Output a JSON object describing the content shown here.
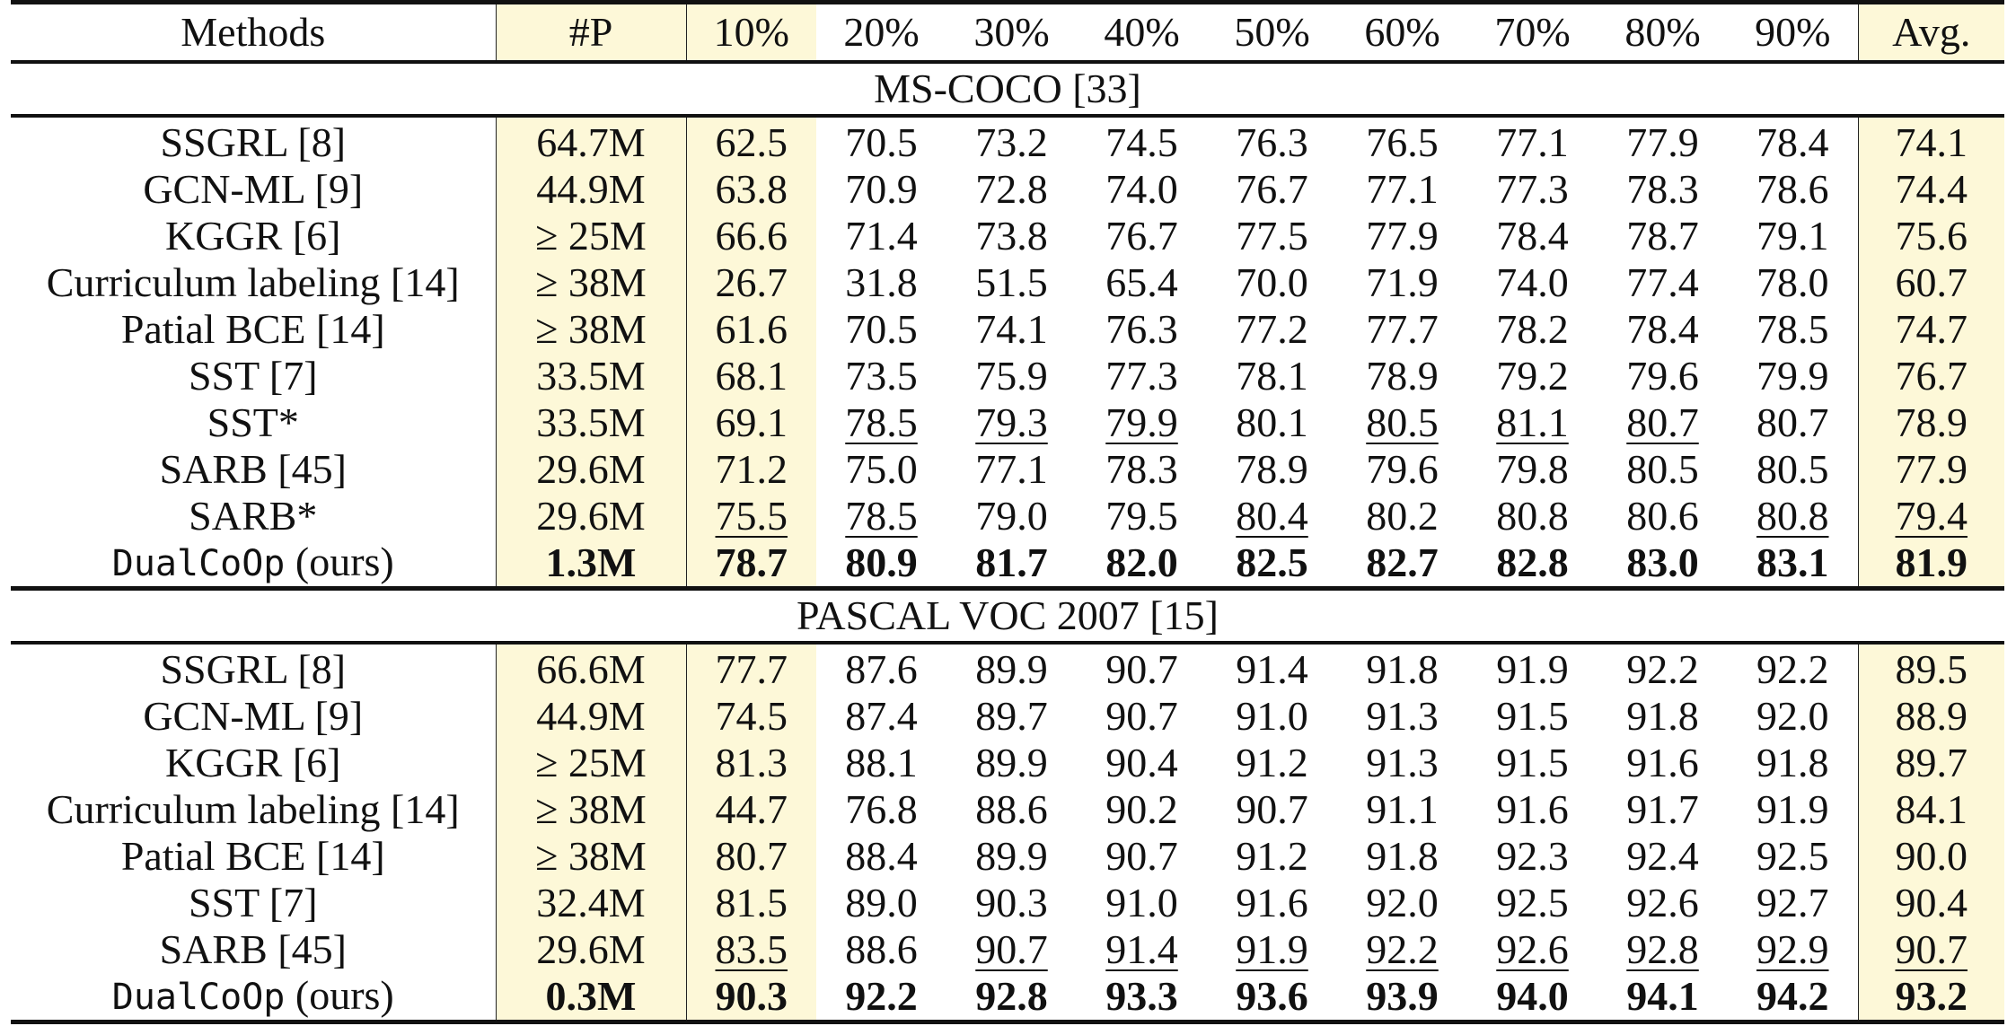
{
  "header": {
    "method": "Methods",
    "params": "#P",
    "ratios": [
      "10%",
      "20%",
      "30%",
      "40%",
      "50%",
      "60%",
      "70%",
      "80%",
      "90%"
    ],
    "avg": "Avg."
  },
  "sections": [
    {
      "title": "MS-COCO [33]",
      "rows": [
        {
          "method": "SSGRL [8]",
          "params": "64.7M",
          "values": [
            "62.5",
            "70.5",
            "73.2",
            "74.5",
            "76.3",
            "76.5",
            "77.1",
            "77.9",
            "78.4"
          ],
          "avg": "74.1"
        },
        {
          "method": "GCN-ML [9]",
          "params": "44.9M",
          "values": [
            "63.8",
            "70.9",
            "72.8",
            "74.0",
            "76.7",
            "77.1",
            "77.3",
            "78.3",
            "78.6"
          ],
          "avg": "74.4"
        },
        {
          "method": "KGGR [6]",
          "params": "≥ 25M",
          "values": [
            "66.6",
            "71.4",
            "73.8",
            "76.7",
            "77.5",
            "77.9",
            "78.4",
            "78.7",
            "79.1"
          ],
          "avg": "75.6"
        },
        {
          "method": "Curriculum labeling [14]",
          "params": "≥ 38M",
          "values": [
            "26.7",
            "31.8",
            "51.5",
            "65.4",
            "70.0",
            "71.9",
            "74.0",
            "77.4",
            "78.0"
          ],
          "avg": "60.7"
        },
        {
          "method": "Patial BCE [14]",
          "params": "≥ 38M",
          "values": [
            "61.6",
            "70.5",
            "74.1",
            "76.3",
            "77.2",
            "77.7",
            "78.2",
            "78.4",
            "78.5"
          ],
          "avg": "74.7"
        },
        {
          "method": "SST [7]",
          "params": "33.5M",
          "values": [
            "68.1",
            "73.5",
            "75.9",
            "77.3",
            "78.1",
            "78.9",
            "79.2",
            "79.6",
            "79.9"
          ],
          "avg": "76.7"
        },
        {
          "method": "SST*",
          "params": "33.5M",
          "values": [
            "69.1",
            "78.5",
            "79.3",
            "79.9",
            "80.1",
            "80.5",
            "81.1",
            "80.7",
            "80.7"
          ],
          "avg": "78.9"
        },
        {
          "method": "SARB [45]",
          "params": "29.6M",
          "values": [
            "71.2",
            "75.0",
            "77.1",
            "78.3",
            "78.9",
            "79.6",
            "79.8",
            "80.5",
            "80.5"
          ],
          "avg": "77.9"
        },
        {
          "method": "SARB*",
          "params": "29.6M",
          "values": [
            "75.5",
            "78.5",
            "79.0",
            "79.5",
            "80.4",
            "80.2",
            "80.8",
            "80.6",
            "80.8"
          ],
          "avg": "79.4"
        }
      ],
      "ours": {
        "method": "DualCoOp",
        "method_suffix": " (ours)",
        "params": "1.3M",
        "values": [
          "78.7",
          "80.9",
          "81.7",
          "82.0",
          "82.5",
          "82.7",
          "82.8",
          "83.0",
          "83.1"
        ],
        "avg": "81.9"
      }
    },
    {
      "title": "PASCAL VOC 2007  [15]",
      "rows": [
        {
          "method": "SSGRL [8]",
          "params": "66.6M",
          "values": [
            "77.7",
            "87.6",
            "89.9",
            "90.7",
            "91.4",
            "91.8",
            "91.9",
            "92.2",
            "92.2"
          ],
          "avg": "89.5"
        },
        {
          "method": "GCN-ML [9]",
          "params": "44.9M",
          "values": [
            "74.5",
            "87.4",
            "89.7",
            "90.7",
            "91.0",
            "91.3",
            "91.5",
            "91.8",
            "92.0"
          ],
          "avg": "88.9"
        },
        {
          "method": "KGGR [6]",
          "params": "≥ 25M",
          "values": [
            "81.3",
            "88.1",
            "89.9",
            "90.4",
            "91.2",
            "91.3",
            "91.5",
            "91.6",
            "91.8"
          ],
          "avg": "89.7"
        },
        {
          "method": "Curriculum labeling [14]",
          "params": "≥ 38M",
          "values": [
            "44.7",
            "76.8",
            "88.6",
            "90.2",
            "90.7",
            "91.1",
            "91.6",
            "91.7",
            "91.9"
          ],
          "avg": "84.1"
        },
        {
          "method": "Patial BCE [14]",
          "params": "≥ 38M",
          "values": [
            "80.7",
            "88.4",
            "89.9",
            "90.7",
            "91.2",
            "91.8",
            "92.3",
            "92.4",
            "92.5"
          ],
          "avg": "90.0"
        },
        {
          "method": "SST [7]",
          "params": "32.4M",
          "values": [
            "81.5",
            "89.0",
            "90.3",
            "91.0",
            "91.6",
            "92.0",
            "92.5",
            "92.6",
            "92.7"
          ],
          "avg": "90.4"
        },
        {
          "method": "SARB [45]",
          "params": "29.6M",
          "values": [
            "83.5",
            "88.6",
            "90.7",
            "91.4",
            "91.9",
            "92.2",
            "92.6",
            "92.8",
            "92.9"
          ],
          "avg": "90.7"
        }
      ],
      "ours": {
        "method": "DualCoOp",
        "method_suffix": " (ours)",
        "params": "0.3M",
        "values": [
          "90.3",
          "92.2",
          "92.8",
          "93.3",
          "93.6",
          "93.9",
          "94.0",
          "94.1",
          "94.2"
        ],
        "avg": "93.2"
      }
    }
  ],
  "underlined": [
    {
      "section": 0,
      "row": 6,
      "cols": [
        "1",
        "2",
        "3",
        "5",
        "6",
        "7"
      ]
    },
    {
      "section": 0,
      "row": 8,
      "cols": [
        "0",
        "1",
        "4",
        "8",
        "avg"
      ]
    },
    {
      "section": 1,
      "row": 6,
      "cols": [
        "0",
        "2",
        "3",
        "4",
        "5",
        "6",
        "7",
        "8",
        "avg"
      ]
    }
  ],
  "colors": {
    "highlight": "#fdf8d8",
    "rule": "#111111"
  }
}
